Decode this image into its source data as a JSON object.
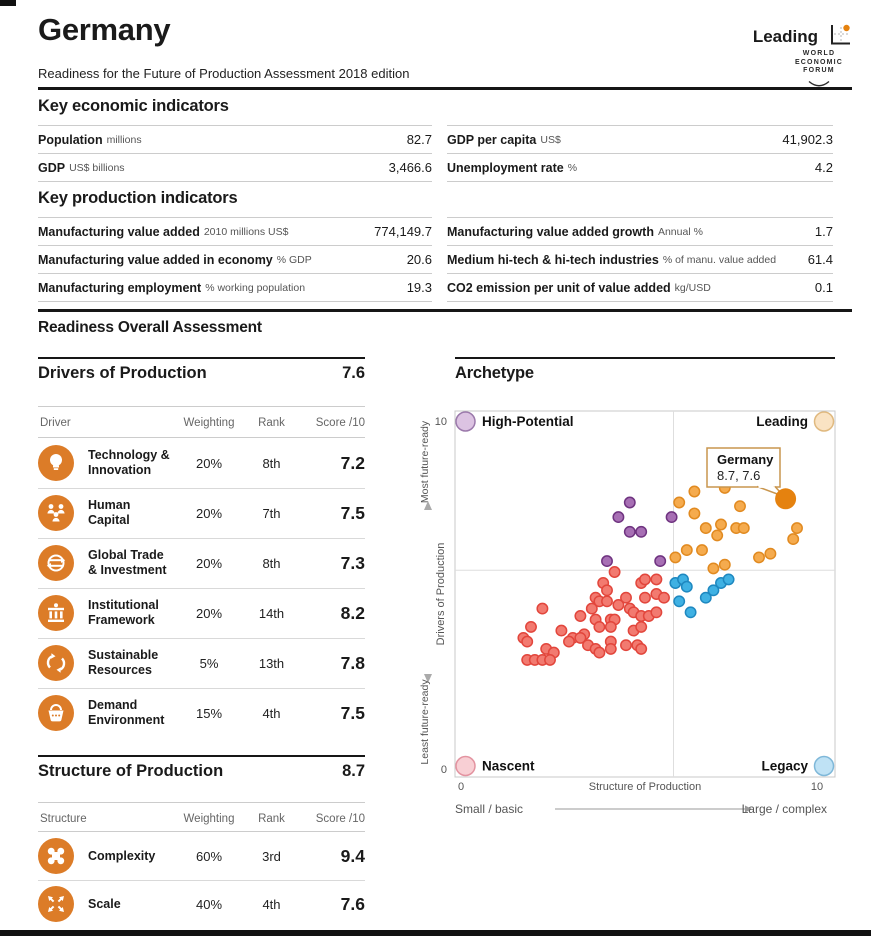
{
  "header": {
    "country": "Germany",
    "archetype_badge": "Leading",
    "subtitle": "Readiness for the Future of Production Assessment 2018 edition",
    "logo": {
      "line1": "WORLD",
      "line2": "ECONOMIC",
      "line3": "FORUM"
    }
  },
  "economic": {
    "title": "Key economic indicators",
    "rows": [
      {
        "label": "Population",
        "unit": "millions",
        "value": "82.7"
      },
      {
        "label": "GDP",
        "unit": "US$ billions",
        "value": "3,466.6"
      },
      {
        "label": "GDP per capita",
        "unit": "US$",
        "value": "41,902.3"
      },
      {
        "label": "Unemployment rate",
        "unit": "%",
        "value": "4.2"
      }
    ]
  },
  "production": {
    "title": "Key production indicators",
    "rows": [
      {
        "label": "Manufacturing value added",
        "unit": "2010 millions US$",
        "value": "774,149.7"
      },
      {
        "label": "Manufacturing value added in economy",
        "unit": "% GDP",
        "value": "20.6"
      },
      {
        "label": "Manufacturing employment",
        "unit": "% working population",
        "value": "19.3"
      },
      {
        "label": "Manufacturing value added growth",
        "unit": "Annual %",
        "value": "1.7"
      },
      {
        "label": "Medium hi-tech & hi-tech industries",
        "unit": "% of manu. value added",
        "value": "61.4"
      },
      {
        "label": "CO2 emission per unit of value added",
        "unit": "kg/USD",
        "value": "0.1"
      }
    ]
  },
  "overall": {
    "title": "Readiness Overall Assessment"
  },
  "drivers": {
    "title": "Drivers of Production",
    "score": "7.6",
    "col_headers": {
      "name": "Driver",
      "weighting": "Weighting",
      "rank": "Rank",
      "score": "Score /10"
    },
    "rows": [
      {
        "name": "Technology & Innovation",
        "weighting": "20%",
        "rank": "8th",
        "score": "7.2"
      },
      {
        "name": "Human Capital",
        "weighting": "20%",
        "rank": "7th",
        "score": "7.5"
      },
      {
        "name": "Global Trade & Investment",
        "weighting": "20%",
        "rank": "8th",
        "score": "7.3"
      },
      {
        "name": "Institutional Framework",
        "weighting": "20%",
        "rank": "14th",
        "score": "8.2"
      },
      {
        "name": "Sustainable Resources",
        "weighting": "5%",
        "rank": "13th",
        "score": "7.8"
      },
      {
        "name": "Demand Environment",
        "weighting": "15%",
        "rank": "4th",
        "score": "7.5"
      }
    ]
  },
  "structure": {
    "title": "Structure of Production",
    "score": "8.7",
    "col_headers": {
      "name": "Structure",
      "weighting": "Weighting",
      "rank": "Rank",
      "score": "Score /10"
    },
    "rows": [
      {
        "name": "Complexity",
        "weighting": "60%",
        "rank": "3rd",
        "score": "9.4"
      },
      {
        "name": "Scale",
        "weighting": "40%",
        "rank": "4th",
        "score": "7.6"
      }
    ]
  },
  "archetype": {
    "title": "Archetype",
    "quadrants": {
      "top_left": "High-Potential",
      "top_right": "Leading",
      "bottom_left": "Nascent",
      "bottom_right": "Legacy"
    },
    "y_axis": {
      "top_label": "Most future-ready",
      "title": "Drivers of Production",
      "bottom_label": "Least future-ready",
      "max": "10",
      "min": "0"
    },
    "x_axis": {
      "min": "0",
      "title": "Structure of Production",
      "max": "10",
      "left_label": "Small / basic",
      "right_label": "Large / complex"
    },
    "callout": {
      "name": "Germany",
      "coords": "8.7, 7.6"
    }
  },
  "colors": {
    "accent_orange": "#dc7c28",
    "rule_dark": "#161616",
    "rule_light": "#cccccc",
    "nascent_fill": "#f27a70",
    "nascent_stroke": "#e2463c",
    "legacy_fill": "#3fb1e3",
    "legacy_stroke": "#1e88c0",
    "high_potential_fill": "#a76fb4",
    "high_potential_stroke": "#6f3380",
    "leading_fill": "#f5ab4e",
    "leading_stroke": "#e18a20",
    "germany_dot": "#e5820f"
  },
  "chart_data": {
    "type": "scatter",
    "title": "Archetype",
    "xlabel": "Structure of Production",
    "ylabel": "Drivers of Production",
    "xlim": [
      0,
      10
    ],
    "ylim": [
      0,
      10
    ],
    "quadrant_split": [
      5.75,
      5.65
    ],
    "legend_position": "quadrant-corners",
    "grid": false,
    "highlight": {
      "name": "Germany",
      "x": 8.7,
      "y": 7.6,
      "color": "#e5820f",
      "label": "Germany 8.7, 7.6"
    },
    "series": [
      {
        "name": "Nascent",
        "color": "#f27a70",
        "stroke": "#e2463c",
        "points": [
          [
            4.2,
            5.6
          ],
          [
            3.9,
            5.3
          ],
          [
            4.9,
            5.3
          ],
          [
            5.0,
            5.4
          ],
          [
            5.3,
            5.4
          ],
          [
            4.0,
            5.1
          ],
          [
            4.5,
            4.9
          ],
          [
            5.0,
            4.9
          ],
          [
            5.3,
            5.0
          ],
          [
            5.5,
            4.9
          ],
          [
            3.7,
            4.9
          ],
          [
            3.8,
            4.8
          ],
          [
            4.0,
            4.8
          ],
          [
            2.3,
            4.6
          ],
          [
            3.6,
            4.6
          ],
          [
            4.3,
            4.7
          ],
          [
            4.6,
            4.6
          ],
          [
            3.3,
            4.4
          ],
          [
            4.7,
            4.5
          ],
          [
            4.9,
            4.4
          ],
          [
            5.1,
            4.4
          ],
          [
            5.3,
            4.5
          ],
          [
            3.7,
            4.3
          ],
          [
            4.1,
            4.3
          ],
          [
            4.2,
            4.3
          ],
          [
            2.0,
            4.1
          ],
          [
            2.8,
            4.0
          ],
          [
            3.1,
            3.8
          ],
          [
            3.4,
            3.9
          ],
          [
            3.8,
            4.1
          ],
          [
            4.1,
            4.1
          ],
          [
            4.7,
            4.0
          ],
          [
            4.9,
            4.1
          ],
          [
            1.8,
            3.8
          ],
          [
            1.9,
            3.7
          ],
          [
            2.4,
            3.5
          ],
          [
            2.6,
            3.4
          ],
          [
            3.0,
            3.7
          ],
          [
            3.3,
            3.8
          ],
          [
            3.5,
            3.6
          ],
          [
            3.7,
            3.5
          ],
          [
            3.8,
            3.4
          ],
          [
            4.1,
            3.7
          ],
          [
            4.1,
            3.5
          ],
          [
            4.5,
            3.6
          ],
          [
            4.8,
            3.6
          ],
          [
            1.9,
            3.2
          ],
          [
            2.1,
            3.2
          ],
          [
            2.3,
            3.2
          ],
          [
            2.5,
            3.2
          ],
          [
            4.9,
            3.5
          ]
        ]
      },
      {
        "name": "Legacy",
        "color": "#3fb1e3",
        "stroke": "#1e88c0",
        "points": [
          [
            5.8,
            5.3
          ],
          [
            6.0,
            5.4
          ],
          [
            6.1,
            5.2
          ],
          [
            5.9,
            4.8
          ],
          [
            6.2,
            4.5
          ],
          [
            6.6,
            4.9
          ],
          [
            6.8,
            5.1
          ],
          [
            7.0,
            5.3
          ],
          [
            7.2,
            5.4
          ]
        ]
      },
      {
        "name": "High-Potential",
        "color": "#a76fb4",
        "stroke": "#6f3380",
        "points": [
          [
            4.6,
            7.5
          ],
          [
            4.3,
            7.1
          ],
          [
            4.6,
            6.7
          ],
          [
            4.9,
            6.7
          ],
          [
            5.7,
            7.1
          ],
          [
            4.0,
            5.9
          ],
          [
            5.4,
            5.9
          ]
        ]
      },
      {
        "name": "Leading",
        "color": "#f5ab4e",
        "stroke": "#e18a20",
        "points": [
          [
            6.3,
            7.8
          ],
          [
            7.1,
            7.9
          ],
          [
            5.9,
            7.5
          ],
          [
            6.3,
            7.2
          ],
          [
            7.5,
            7.4
          ],
          [
            7.0,
            6.9
          ],
          [
            6.6,
            6.8
          ],
          [
            7.4,
            6.8
          ],
          [
            7.6,
            6.8
          ],
          [
            6.9,
            6.6
          ],
          [
            9.0,
            6.8
          ],
          [
            8.9,
            6.5
          ],
          [
            6.1,
            6.2
          ],
          [
            6.5,
            6.2
          ],
          [
            5.8,
            6.0
          ],
          [
            6.8,
            5.7
          ],
          [
            7.1,
            5.8
          ],
          [
            8.0,
            6.0
          ],
          [
            8.3,
            6.1
          ]
        ]
      }
    ]
  }
}
